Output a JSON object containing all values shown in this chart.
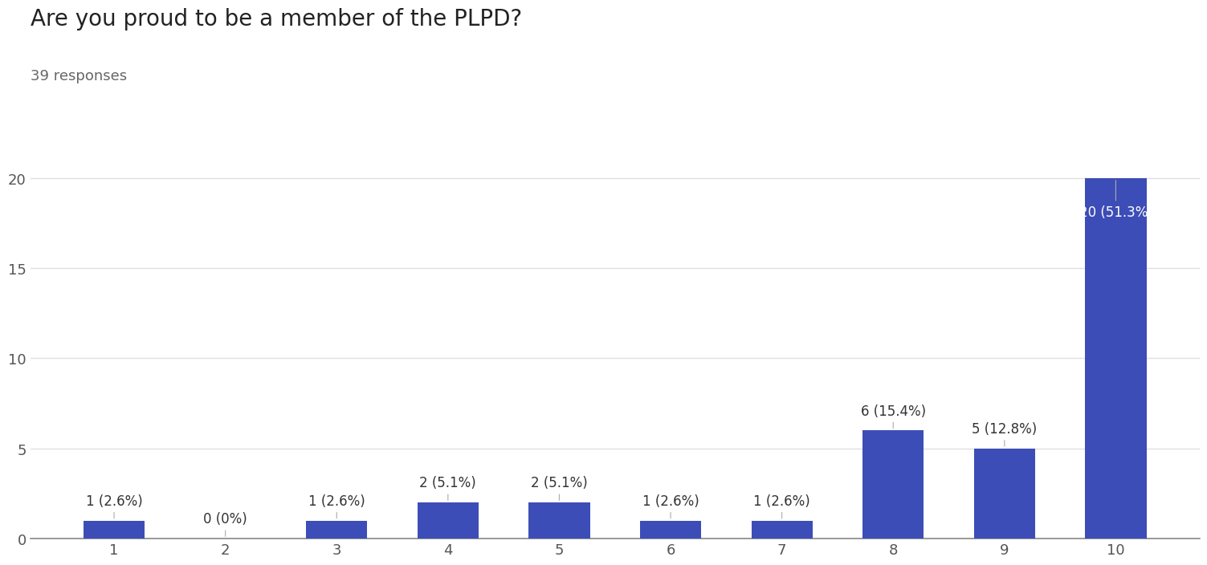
{
  "title": "Are you proud to be a member of the PLPD?",
  "subtitle": "39 responses",
  "categories": [
    1,
    2,
    3,
    4,
    5,
    6,
    7,
    8,
    9,
    10
  ],
  "values": [
    1,
    0,
    1,
    2,
    2,
    1,
    1,
    6,
    5,
    20
  ],
  "labels": [
    "1 (2.6%)",
    "0 (0%)",
    "1 (2.6%)",
    "2 (5.1%)",
    "2 (5.1%)",
    "1 (2.6%)",
    "1 (2.6%)",
    "6 (15.4%)",
    "5 (12.8%)",
    "20 (51.3%)"
  ],
  "bar_color": "#3d4db7",
  "background_color": "#ffffff",
  "ylim": [
    0,
    21
  ],
  "yticks": [
    0,
    5,
    10,
    15,
    20
  ],
  "grid_color": "#e0e0e0",
  "title_fontsize": 20,
  "subtitle_fontsize": 13,
  "tick_fontsize": 13,
  "label_fontsize": 12,
  "label_color_default": "#333333",
  "label_color_inside": "#ffffff"
}
